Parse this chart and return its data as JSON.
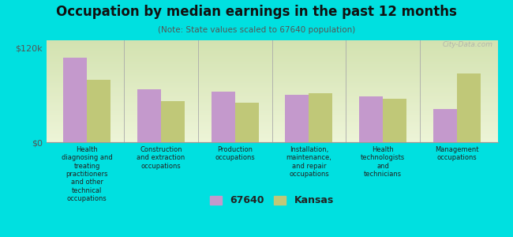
{
  "title": "Occupation by median earnings in the past 12 months",
  "subtitle": "(Note: State values scaled to 67640 population)",
  "background_color": "#00e0e0",
  "plot_bg_color_top": "#c8dba0",
  "plot_bg_color_bottom": "#eef5d8",
  "categories": [
    "Health\ndiagnosing and\ntreating\npractitioners\nand other\ntechnical\noccupations",
    "Construction\nand extraction\noccupations",
    "Production\noccupations",
    "Installation,\nmaintenance,\nand repair\noccupations",
    "Health\ntechnologists\nand\ntechnicians",
    "Management\noccupations"
  ],
  "values_67640": [
    108000,
    68000,
    65000,
    60000,
    58000,
    42000
  ],
  "values_kansas": [
    80000,
    52000,
    50000,
    62000,
    55000,
    88000
  ],
  "color_67640": "#c499cc",
  "color_kansas": "#c0c878",
  "ylim": [
    0,
    130000
  ],
  "ytick_vals": [
    0,
    120000
  ],
  "ytick_labels": [
    "$0",
    "$120k"
  ],
  "legend_labels": [
    "67640",
    "Kansas"
  ],
  "watermark": "City-Data.com"
}
